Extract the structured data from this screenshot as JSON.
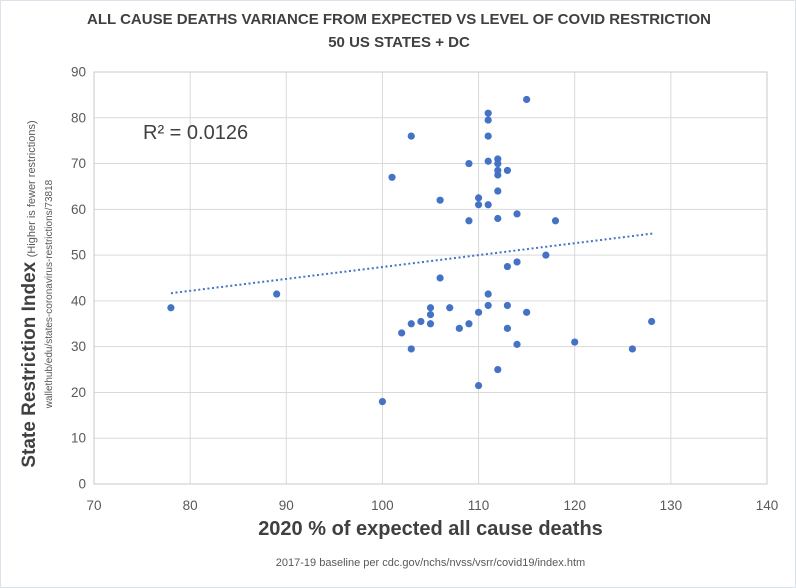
{
  "chart": {
    "title_line1": "ALL CAUSE DEATHS VARIANCE FROM EXPECTED VS LEVEL OF COVID RESTRICTION",
    "title_line2": "50 US STATES + DC",
    "r_squared_label": "R² = 0.0126",
    "y_axis_title": "State Restriction Index",
    "y_axis_note": "(Higher is fewer restrictions)",
    "y_axis_source": "wallethub/edu/states-coronavirus-restrictions/73818",
    "x_axis_title": "2020 % of expected all cause deaths",
    "x_axis_footnote": "2017-19 baseline per cdc.gov/nchs/nvss/vsrr/covid19/index.htm"
  },
  "colors": {
    "marker": "#4472C4",
    "trendline": "#4472C4",
    "gridline": "#D9D9D9",
    "plot_border": "#C6C9CC",
    "title_text": "#404040",
    "tick_text": "#595959"
  },
  "chart_data": {
    "type": "scatter",
    "title": "ALL CAUSE DEATHS VARIANCE FROM EXPECTED VS LEVEL OF COVID RESTRICTION - 50 US STATES + DC",
    "xlabel": "2020 % of expected all cause deaths",
    "ylabel": "State Restriction Index (Higher is fewer restrictions)",
    "xlim": [
      70,
      140
    ],
    "ylim": [
      0,
      90
    ],
    "x_ticks": [
      70,
      80,
      90,
      100,
      110,
      120,
      130,
      140
    ],
    "y_ticks": [
      0,
      10,
      20,
      30,
      40,
      50,
      60,
      70,
      80,
      90
    ],
    "grid": true,
    "legend": false,
    "points": [
      [
        78,
        38.5
      ],
      [
        89,
        41.5
      ],
      [
        100,
        18
      ],
      [
        101,
        67
      ],
      [
        102,
        33
      ],
      [
        103,
        76
      ],
      [
        103,
        35
      ],
      [
        103,
        29.5
      ],
      [
        104,
        35.5
      ],
      [
        105,
        38.5
      ],
      [
        105,
        37
      ],
      [
        105,
        35
      ],
      [
        106,
        62
      ],
      [
        106,
        45
      ],
      [
        107,
        38.5
      ],
      [
        108,
        34
      ],
      [
        109,
        70
      ],
      [
        109,
        57.5
      ],
      [
        109,
        35
      ],
      [
        110,
        62.5
      ],
      [
        110,
        61
      ],
      [
        110,
        37.5
      ],
      [
        110,
        21.5
      ],
      [
        111,
        81
      ],
      [
        111,
        79.5
      ],
      [
        111,
        76
      ],
      [
        111,
        70.5
      ],
      [
        111,
        61
      ],
      [
        111,
        41.5
      ],
      [
        111,
        39
      ],
      [
        112,
        71
      ],
      [
        112,
        70
      ],
      [
        112,
        68.5
      ],
      [
        112,
        67.5
      ],
      [
        112,
        64
      ],
      [
        112,
        58
      ],
      [
        112,
        25
      ],
      [
        113,
        68.5
      ],
      [
        113,
        47.5
      ],
      [
        113,
        39
      ],
      [
        113,
        34
      ],
      [
        114,
        59
      ],
      [
        114,
        48.5
      ],
      [
        114,
        30.5
      ],
      [
        115,
        84
      ],
      [
        115,
        37.5
      ],
      [
        117,
        50
      ],
      [
        118,
        57.5
      ],
      [
        120,
        31
      ],
      [
        126,
        29.5
      ],
      [
        128,
        35.5
      ]
    ],
    "trendline": {
      "type": "linear",
      "slope": 0.26,
      "intercept": 21.4,
      "x_start": 78,
      "x_end": 128.3,
      "r_squared": 0.0126,
      "style": "dotted"
    }
  }
}
